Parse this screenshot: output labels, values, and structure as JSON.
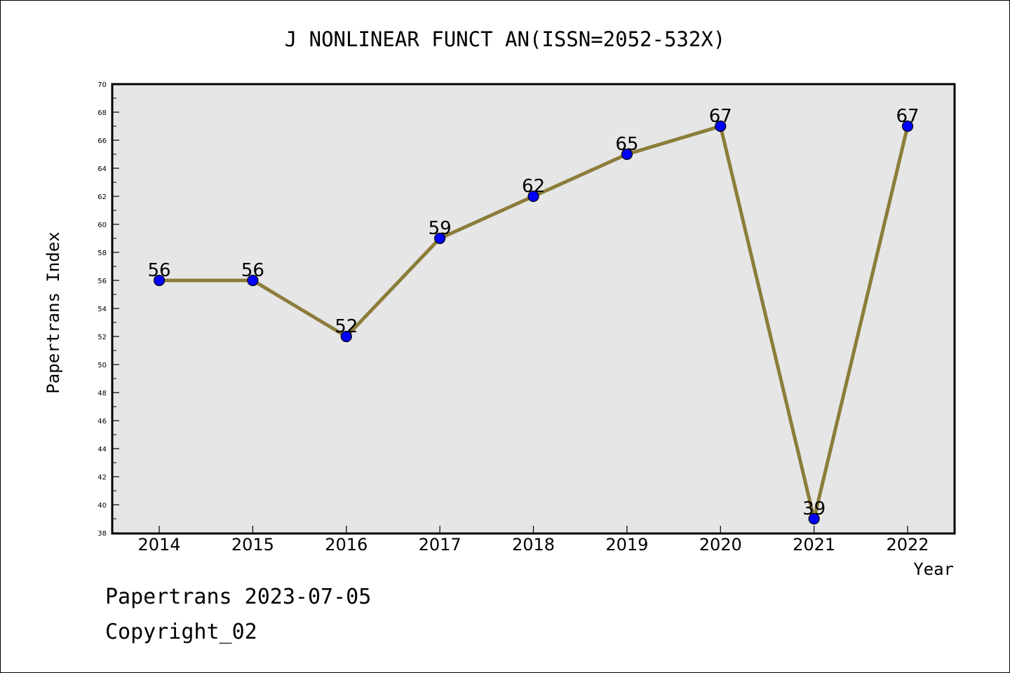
{
  "chart_data": {
    "type": "line",
    "title": "J NONLINEAR FUNCT AN(ISSN=2052-532X)",
    "xlabel": "Year",
    "ylabel": "Papertrans Index",
    "categories": [
      "2014",
      "2015",
      "2016",
      "2017",
      "2018",
      "2019",
      "2020",
      "2021",
      "2022"
    ],
    "series": [
      {
        "values": [
          56,
          56,
          52,
          59,
          62,
          65,
          67,
          39,
          67
        ]
      }
    ],
    "data_labels": [
      "56",
      "56",
      "52",
      "59",
      "62",
      "65",
      "67",
      "39",
      "67"
    ],
    "ylim": [
      38,
      70
    ],
    "y_ticks": [
      "38",
      "40",
      "42",
      "44",
      "46",
      "48",
      "50",
      "52",
      "54",
      "56",
      "58",
      "60",
      "62",
      "64",
      "66",
      "68",
      "70"
    ],
    "grid": false,
    "line_color": "#8b7d3a",
    "marker_color": "#0000ff",
    "plot_background": "#e6e6e6"
  },
  "footer": {
    "source_line": "Papertrans 2023-07-05",
    "copyright_line": "Copyright_02"
  }
}
